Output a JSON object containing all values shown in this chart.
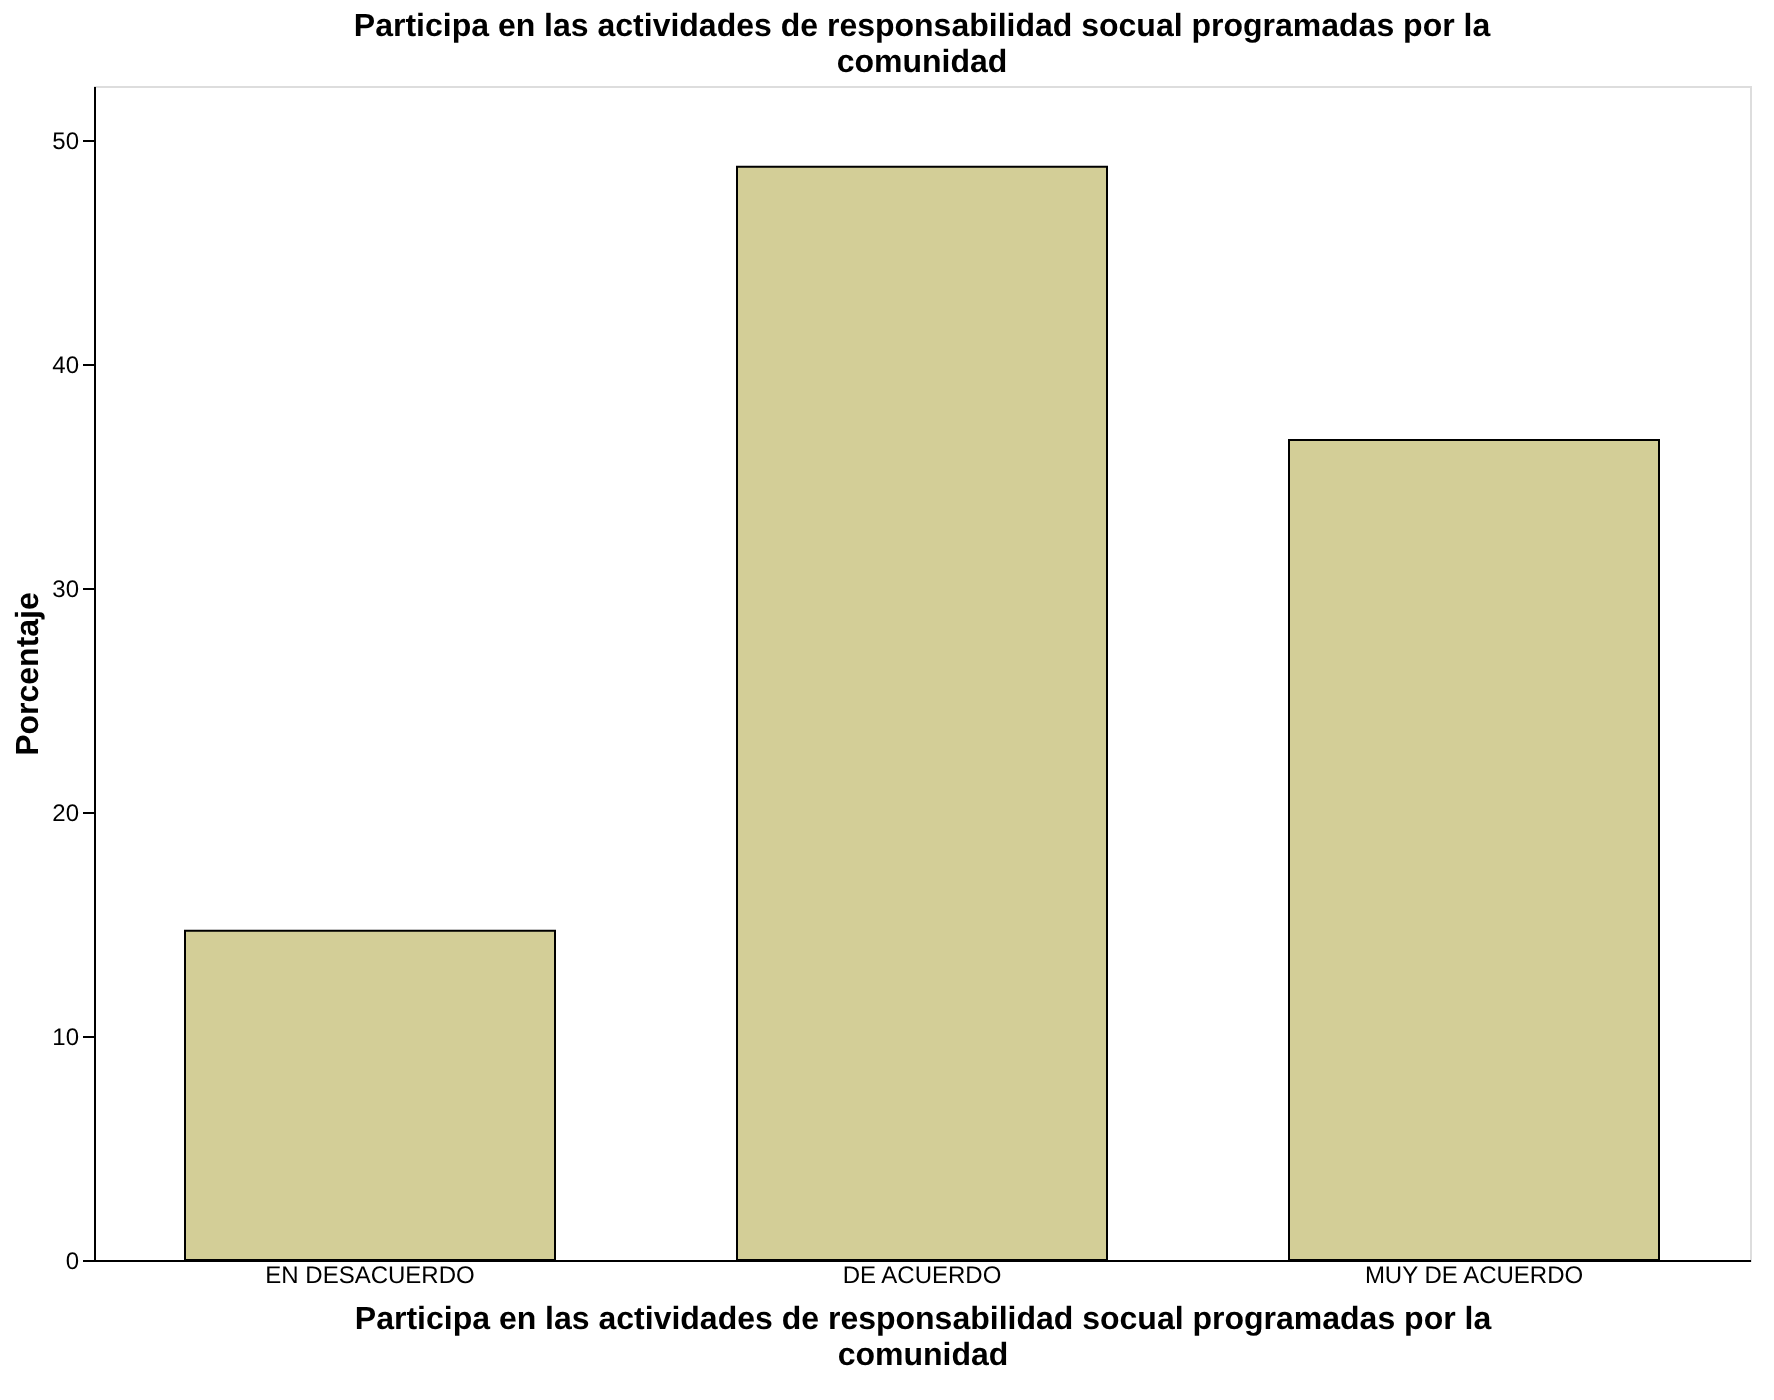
{
  "chart_data": {
    "type": "bar",
    "title": "Participa en las actividades de responsabilidad socual programadas por la comunidad",
    "xlabel": "Participa en las actividades de responsabilidad socual programadas por la comunidad",
    "ylabel": "Porcentaje",
    "categories": [
      "EN DESACUERDO",
      "DE ACUERDO",
      "MUY DE ACUERDO"
    ],
    "values": [
      14.7,
      48.8,
      36.6
    ],
    "color": "#d3ce97",
    "ylim": [
      0,
      52.4
    ],
    "yticks": [
      0,
      10,
      20,
      30,
      40,
      50
    ],
    "grid": false
  }
}
